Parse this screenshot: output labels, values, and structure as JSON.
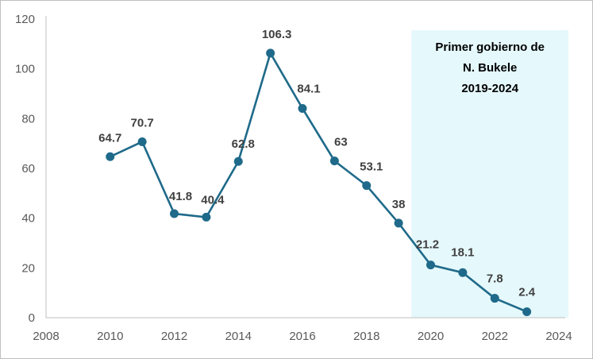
{
  "chart_data": {
    "type": "line",
    "title": "",
    "xlabel": "",
    "ylabel": "",
    "x": [
      2010,
      2011,
      2012,
      2013,
      2014,
      2015,
      2016,
      2017,
      2018,
      2019,
      2020,
      2021,
      2022,
      2023
    ],
    "series": [
      {
        "values": [
          64.7,
          70.7,
          41.8,
          40.4,
          62.8,
          106.3,
          84.1,
          63,
          53.1,
          38,
          21.2,
          18.1,
          7.8,
          2.4
        ],
        "labels": [
          "64.7",
          "70.7",
          "41.8",
          "40.4",
          "62.8",
          "106.3",
          "84.1",
          "63",
          "53.1",
          "38",
          "21.2",
          "18.1",
          "7.8",
          "2.4"
        ],
        "color": "#1f6a8a"
      }
    ],
    "xlim": [
      2008,
      2024
    ],
    "ylim": [
      0,
      120
    ],
    "x_ticks": [
      "2008",
      "2010",
      "2012",
      "2014",
      "2016",
      "2018",
      "2020",
      "2022",
      "2024"
    ],
    "y_ticks": [
      "0",
      "20",
      "40",
      "60",
      "80",
      "100",
      "120"
    ],
    "grid": false,
    "legend": "none",
    "highlight": {
      "x_range": [
        2019.4,
        2024.3
      ],
      "color": "#e5f8fb",
      "lines": [
        "Primer gobierno de",
        "N. Bukele",
        "2019-2024"
      ]
    }
  }
}
